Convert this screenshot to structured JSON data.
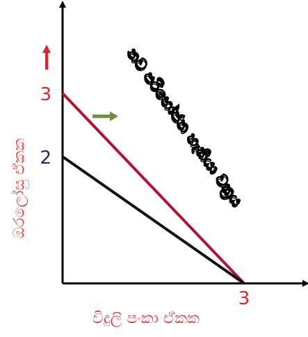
{
  "chart_data": {
    "type": "line",
    "xlabel": "විදුලි පංකා ඒකක",
    "ylabel": "ඔරලෝසු ඒකක",
    "xlim": [
      0,
      3.6
    ],
    "ylim": [
      0,
      3.3
    ],
    "y_ticks": [
      {
        "value": 3,
        "label": "3",
        "color": "#e8202a"
      },
      {
        "value": 2,
        "label": "2",
        "color": "#1a2b6b"
      }
    ],
    "x_ticks": [
      {
        "value": 3,
        "label": "3",
        "color": "#e8202a"
      }
    ],
    "series": [
      {
        "points": [
          [
            0,
            3
          ],
          [
            3,
            0
          ]
        ],
        "color": "#b5122f"
      },
      {
        "points": [
          [
            0,
            2
          ],
          [
            3,
            0
          ]
        ],
        "color": "#111111"
      }
    ],
    "annotations": {
      "curve_label": "නව පරිභෝජන හැකියා වක්‍රය",
      "shift_arrow_color": "#6f8f3e",
      "up_arrow_color": "#e8202a"
    }
  }
}
